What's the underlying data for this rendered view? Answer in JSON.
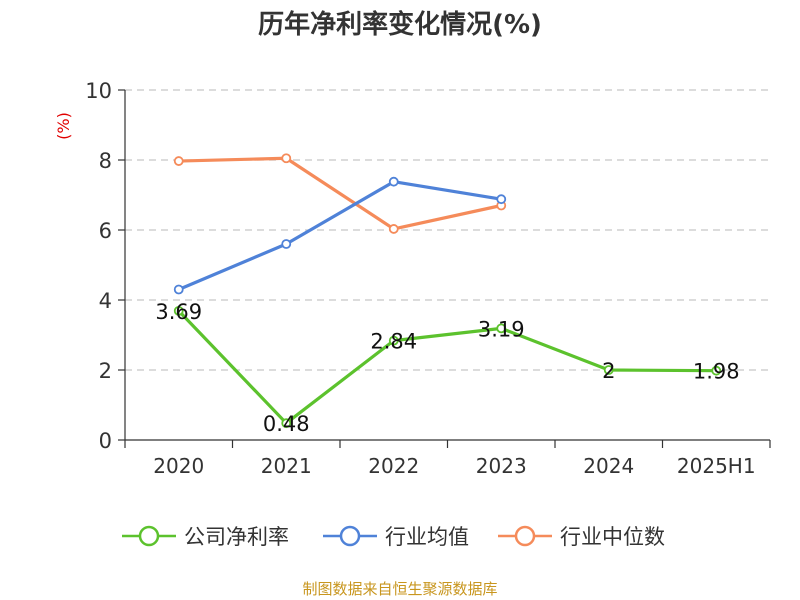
{
  "colors": {
    "company": "#5cc22d",
    "industry_avg": "#4f82d8",
    "industry_median": "#f58b5a",
    "grid": "#c8c8c8",
    "axis": "#333333",
    "ylabel": "#e00000",
    "source": "#c8961e"
  },
  "source_text": "制图数据来自恒生聚源数据库",
  "chart_data": {
    "type": "line",
    "title": "历年净利率变化情况(%)",
    "ylabel": "(%)",
    "xlabel": "",
    "ylim": [
      0,
      10
    ],
    "yticks": [
      0,
      2,
      4,
      6,
      8,
      10
    ],
    "grid": true,
    "legend_position": "bottom",
    "categories": [
      "2020",
      "2021",
      "2022",
      "2023",
      "2024",
      "2025H1"
    ],
    "series": [
      {
        "name": "公司净利率",
        "color_key": "company",
        "values": [
          3.69,
          0.48,
          2.84,
          3.19,
          2,
          1.98
        ],
        "labels": [
          "3.69",
          "0.48",
          "2.84",
          "3.19",
          "2",
          "1.98"
        ]
      },
      {
        "name": "行业均值",
        "color_key": "industry_avg",
        "values": [
          4.3,
          5.6,
          7.38,
          6.88,
          null,
          null
        ]
      },
      {
        "name": "行业中位数",
        "color_key": "industry_median",
        "values": [
          7.97,
          8.05,
          6.03,
          6.7,
          null,
          null
        ]
      }
    ]
  }
}
